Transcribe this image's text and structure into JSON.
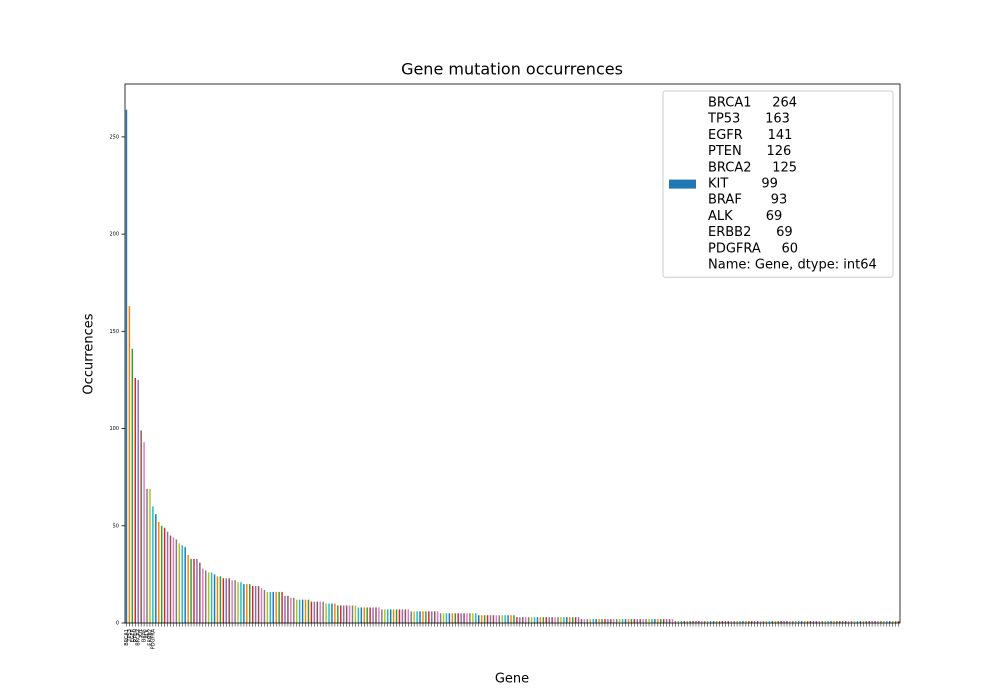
{
  "chart_data": {
    "type": "bar",
    "title": "Gene mutation occurrences",
    "xlabel": "Gene",
    "ylabel": "Occurrences",
    "legend_lines": [
      "BRCA1     264",
      "TP53      163",
      "EGFR      141",
      "PTEN      126",
      "BRCA2     125",
      "KIT        99",
      "BRAF       93",
      "ALK        69",
      "ERBB2      69",
      "PDGFRA     60",
      "Name: Gene, dtype: int64"
    ],
    "legend_color": "#1f77b4",
    "legend": "upper right",
    "colors": [
      "#1f77b4",
      "#ff7f0e",
      "#2ca02c",
      "#d62728",
      "#9467bd",
      "#8c564b",
      "#e377c2",
      "#7f7f7f",
      "#bcbd22",
      "#17becf"
    ],
    "categories": [
      "BRCA1",
      "TP53",
      "EGFR",
      "PTEN",
      "BRCA2",
      "KIT",
      "BRAF",
      "ALK",
      "ERBB2",
      "PDGFRA",
      null,
      null,
      null,
      null,
      null,
      null,
      null,
      null,
      null,
      null,
      null,
      null,
      null,
      null,
      null,
      null,
      null,
      null,
      null,
      null,
      null,
      null,
      null,
      null,
      null,
      null,
      null,
      null,
      null,
      null,
      null,
      null,
      null,
      null,
      null,
      null,
      null,
      null,
      null,
      null,
      null,
      null,
      null,
      null,
      null,
      null,
      null,
      null,
      null,
      null,
      null,
      null,
      null,
      null,
      null,
      null,
      null,
      null,
      null,
      null,
      null,
      null,
      null,
      null,
      null,
      null,
      null,
      null,
      null,
      null,
      null,
      null,
      null,
      null,
      null,
      null,
      null,
      null,
      null,
      null,
      null,
      null,
      null,
      null,
      null,
      null,
      null,
      null,
      null,
      null,
      null,
      null,
      null,
      null,
      null,
      null,
      null,
      null,
      null,
      null,
      null,
      null,
      null,
      null,
      null,
      null,
      null,
      null,
      null,
      null,
      null,
      null,
      null,
      null,
      null,
      null,
      null,
      null,
      null,
      null,
      null,
      null,
      null,
      null,
      null,
      null,
      null,
      null,
      null,
      null,
      null,
      null,
      null,
      null,
      null,
      null,
      null,
      null,
      null,
      null,
      null,
      null,
      null,
      null,
      null,
      null,
      null,
      null,
      null,
      null,
      null,
      null,
      null,
      null,
      null,
      null,
      null,
      null,
      null,
      null,
      null,
      null,
      null,
      null,
      null,
      null,
      null,
      null,
      null,
      null,
      null,
      null,
      null,
      null,
      null,
      null,
      null,
      null,
      null,
      null,
      null,
      null,
      null,
      null,
      null,
      null,
      null,
      null,
      null,
      null,
      null,
      null,
      null,
      null,
      null,
      null,
      null,
      null,
      null,
      null,
      null,
      null,
      null,
      null,
      null,
      null,
      null,
      null,
      null,
      null,
      null,
      null,
      null,
      null,
      null,
      null,
      null,
      null,
      null,
      null,
      null,
      null,
      null,
      null,
      null,
      null,
      null,
      null,
      null,
      null,
      null,
      null,
      null,
      null,
      null,
      null,
      null,
      null,
      null,
      null,
      null,
      null,
      null,
      null,
      null,
      null,
      null,
      null,
      null,
      null,
      null,
      null,
      null,
      null
    ],
    "values": [
      264,
      163,
      141,
      126,
      125,
      99,
      93,
      69,
      69,
      60,
      56,
      52,
      50,
      49,
      47,
      45,
      44,
      43,
      41,
      40,
      39,
      35,
      33,
      33,
      33,
      31,
      28,
      27,
      26,
      26,
      25,
      24,
      24,
      23,
      23,
      23,
      22,
      22,
      21,
      21,
      20,
      20,
      20,
      19,
      19,
      19,
      18,
      17,
      16,
      16,
      16,
      16,
      16,
      16,
      14,
      14,
      13,
      13,
      12,
      12,
      12,
      12,
      12,
      11,
      11,
      11,
      11,
      11,
      10,
      10,
      10,
      10,
      9,
      9,
      9,
      9,
      9,
      9,
      9,
      8,
      8,
      8,
      8,
      8,
      8,
      8,
      8,
      7,
      7,
      7,
      7,
      7,
      7,
      7,
      7,
      7,
      7,
      6,
      6,
      6,
      6,
      6,
      6,
      6,
      6,
      6,
      6,
      5,
      5,
      5,
      5,
      5,
      5,
      5,
      5,
      5,
      5,
      5,
      5,
      5,
      4,
      4,
      4,
      4,
      4,
      4,
      4,
      4,
      4,
      4,
      4,
      4,
      4,
      3,
      3,
      3,
      3,
      3,
      3,
      3,
      3,
      3,
      3,
      3,
      3,
      3,
      3,
      3,
      3,
      3,
      3,
      3,
      3,
      3,
      3,
      2,
      2,
      2,
      2,
      2,
      2,
      2,
      2,
      2,
      2,
      2,
      2,
      2,
      2,
      2,
      2,
      2,
      2,
      2,
      2,
      2,
      2,
      2,
      2,
      2,
      2,
      2,
      2,
      2,
      2,
      2,
      2,
      1,
      1,
      1,
      1,
      1,
      1,
      1,
      1,
      1,
      1,
      1,
      1,
      1,
      1,
      1,
      1,
      1,
      1,
      1,
      1,
      1,
      1,
      1,
      1,
      1,
      1,
      1,
      1,
      1,
      1,
      1,
      1,
      1,
      1,
      1,
      1,
      1,
      1,
      1,
      1,
      1,
      1,
      1,
      1,
      1,
      1,
      1,
      1,
      1,
      1,
      1,
      1,
      1,
      1,
      1,
      1,
      1,
      1,
      1,
      1,
      1,
      1,
      1,
      1,
      1,
      1,
      1,
      1,
      1,
      1,
      1,
      1,
      1,
      1,
      1,
      1,
      1
    ],
    "ylim": [
      0,
      277.2
    ],
    "yticks": [
      0,
      50,
      100,
      150,
      200,
      250
    ]
  }
}
